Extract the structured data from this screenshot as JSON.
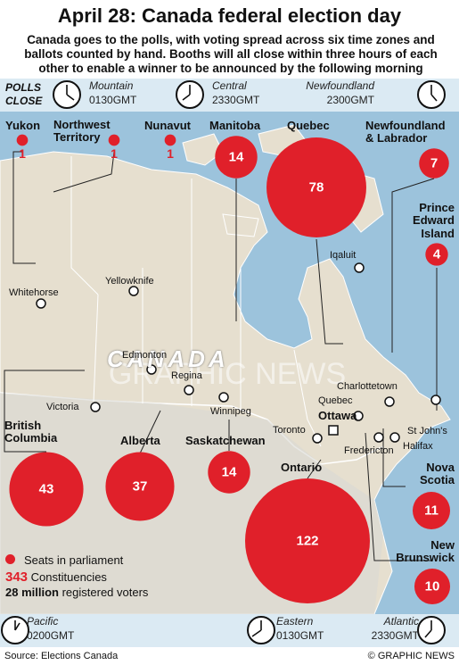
{
  "header": {
    "title": "April 28: Canada federal election day",
    "subtitle": "Canada goes to the polls, with voting spread across six time zones and ballots counted by hand. Booths will all close within three hours of each other to enable a winner to be announced by the following morning"
  },
  "polls_close": {
    "label": [
      "POLLS",
      "CLOSE"
    ],
    "zones": [
      {
        "name": "Mountain",
        "time": "0130GMT"
      },
      {
        "name": "Central",
        "time": "2330GMT"
      },
      {
        "name": "Newfoundland",
        "time": "2300GMT"
      },
      {
        "name": "Pacific",
        "time": "0200GMT"
      },
      {
        "name": "Eastern",
        "time": "0130GMT"
      },
      {
        "name": "Atlantic",
        "time": "2330GMT"
      }
    ]
  },
  "provinces": [
    {
      "name": "Yukon",
      "seats": 1
    },
    {
      "name": "Northwest Territory",
      "seats": 1
    },
    {
      "name": "Nunavut",
      "seats": 1
    },
    {
      "name": "Manitoba",
      "seats": 14
    },
    {
      "name": "Quebec",
      "seats": 78
    },
    {
      "name": "Newfoundland & Labrador",
      "seats": 7
    },
    {
      "name": "Prince Edward Island",
      "seats": 4
    },
    {
      "name": "British Columbia",
      "seats": 43
    },
    {
      "name": "Alberta",
      "seats": 37
    },
    {
      "name": "Saskatchewan",
      "seats": 14
    },
    {
      "name": "Ontario",
      "seats": 122
    },
    {
      "name": "Nova Scotia",
      "seats": 11
    },
    {
      "name": "New Brunswick",
      "seats": 10
    }
  ],
  "cities": [
    "Whitehorse",
    "Yellowknife",
    "Iqaluit",
    "Edmonton",
    "Regina",
    "Winnipeg",
    "Victoria",
    "Charlottetown",
    "Quebec",
    "Ottawa",
    "Toronto",
    "Fredericton",
    "St John's",
    "Halifax"
  ],
  "map_label": "CANADA",
  "watermark": "GRAPHIC NEWS",
  "legend": {
    "seats_label": "Seats in parliament",
    "constituencies": 343,
    "constituencies_label": "Constituencies",
    "voters": "28 million",
    "voters_label": "registered voters"
  },
  "footer": {
    "source": "Source: Elections Canada",
    "credit": "© GRAPHIC NEWS"
  }
}
